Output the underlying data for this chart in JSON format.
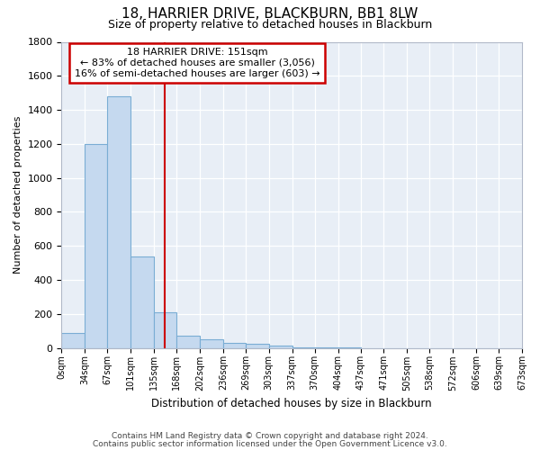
{
  "title1": "18, HARRIER DRIVE, BLACKBURN, BB1 8LW",
  "title2": "Size of property relative to detached houses in Blackburn",
  "xlabel": "Distribution of detached houses by size in Blackburn",
  "ylabel": "Number of detached properties",
  "bar_values": [
    90,
    1200,
    1480,
    540,
    210,
    70,
    50,
    30,
    25,
    15,
    5,
    2,
    1,
    0,
    0,
    0,
    0,
    0,
    0,
    0
  ],
  "bin_edges": [
    0,
    34,
    67,
    101,
    135,
    168,
    202,
    236,
    269,
    303,
    337,
    370,
    404,
    437,
    471,
    505,
    538,
    572,
    606,
    639,
    673
  ],
  "bar_color": "#c5d9ef",
  "bar_edge_color": "#7aadd4",
  "plot_bg_color": "#e8eef6",
  "fig_bg_color": "#ffffff",
  "grid_color": "#ffffff",
  "redline_x": 151,
  "annotation_title": "18 HARRIER DRIVE: 151sqm",
  "annotation_line1": "← 83% of detached houses are smaller (3,056)",
  "annotation_line2": "16% of semi-detached houses are larger (603) →",
  "annotation_box_color": "#ffffff",
  "annotation_border_color": "#cc0000",
  "redline_color": "#cc0000",
  "footer1": "Contains HM Land Registry data © Crown copyright and database right 2024.",
  "footer2": "Contains public sector information licensed under the Open Government Licence v3.0.",
  "ylim": [
    0,
    1800
  ],
  "yticks": [
    0,
    200,
    400,
    600,
    800,
    1000,
    1200,
    1400,
    1600,
    1800
  ]
}
